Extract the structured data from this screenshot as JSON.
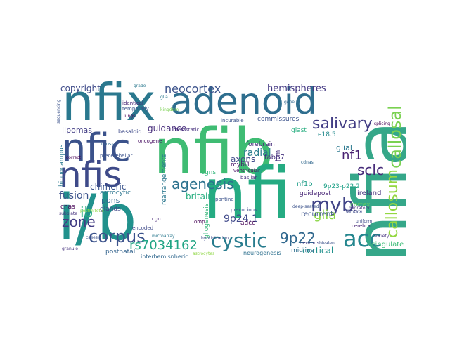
{
  "word_cloud": {
    "words": [
      {
        "text": "nfia",
        "color": "#35a789"
      },
      {
        "text": "nfib",
        "color": "#3fbc73"
      },
      {
        "text": "nfix",
        "color": "#2a788e"
      },
      {
        "text": "i/b",
        "color": "#21918c"
      },
      {
        "text": "nfi",
        "color": "#25ab82"
      },
      {
        "text": "adenoid",
        "color": "#2e6e8e"
      },
      {
        "text": "nfic",
        "color": "#3b528b"
      },
      {
        "text": "nfis",
        "color": "#3e4a89"
      },
      {
        "text": "callosum",
        "color": "#93d741"
      },
      {
        "text": "callosal",
        "color": "#7ad151"
      },
      {
        "text": "acc",
        "color": "#24868e"
      },
      {
        "text": "myb",
        "color": "#414487"
      },
      {
        "text": "cystic",
        "color": "#287c8e"
      },
      {
        "text": "9p22",
        "color": "#31688e"
      },
      {
        "text": "corpus",
        "color": "#3b528b"
      },
      {
        "text": "rs7034162",
        "color": "#21a585"
      },
      {
        "text": "salivary",
        "color": "#433e85"
      },
      {
        "text": "agenesis",
        "color": "#2c728e"
      },
      {
        "text": "zone",
        "color": "#433d84"
      },
      {
        "text": "ib",
        "color": "#29af7f"
      },
      {
        "text": "glia",
        "color": "#8bd646"
      },
      {
        "text": "sclc",
        "color": "#472c7a"
      },
      {
        "text": "neocortex",
        "color": "#3b528b"
      },
      {
        "text": "hemispheres",
        "color": "#443983"
      },
      {
        "text": "copyright",
        "color": "#3e4a89"
      },
      {
        "text": "9p24.1",
        "color": "#3f4889"
      },
      {
        "text": "fusion",
        "color": "#3b528b"
      },
      {
        "text": "nf1",
        "color": "#481f70"
      },
      {
        "text": "cortical",
        "color": "#21918c"
      },
      {
        "text": "glial",
        "color": "#2a788e"
      },
      {
        "text": "guidance",
        "color": "#472d7b"
      },
      {
        "text": "radial",
        "color": "#287c8e"
      },
      {
        "text": "axons",
        "color": "#3e4989"
      },
      {
        "text": "britain",
        "color": "#28ae80"
      },
      {
        "text": "pons",
        "color": "#31678e"
      },
      {
        "text": "chimeric",
        "color": "#3a538b"
      },
      {
        "text": "lipomas",
        "color": "#433e85"
      },
      {
        "text": "cingulate",
        "color": "#3aba76"
      },
      {
        "text": "ireland",
        "color": "#46327e"
      },
      {
        "text": "adcc",
        "color": "#440154"
      },
      {
        "text": "mybl1",
        "color": "#481769"
      },
      {
        "text": "forebrain",
        "color": "#472c7a"
      },
      {
        "text": "hippocampus",
        "color": "#2a788e"
      },
      {
        "text": "guidepost",
        "color": "#482576"
      },
      {
        "text": "recurrent",
        "color": "#3b528b"
      },
      {
        "text": "midline",
        "color": "#2e6f8e"
      },
      {
        "text": "neurogenesis",
        "color": "#2d708e"
      },
      {
        "text": "postnatal",
        "color": "#33638d"
      },
      {
        "text": "nf1b",
        "color": "#1f9e89"
      },
      {
        "text": "fabp7",
        "color": "#46327e"
      },
      {
        "text": "rearrangements",
        "color": "#2a778e"
      },
      {
        "text": "gliogenesis",
        "color": "#35b779"
      },
      {
        "text": "astrocytic",
        "color": "#2b748e"
      },
      {
        "text": "interhemispheric",
        "color": "#31688e"
      },
      {
        "text": "glands",
        "color": "#404688"
      },
      {
        "text": "9p23-p22.2",
        "color": "#1fa187"
      },
      {
        "text": "cortex",
        "color": "#5ec962"
      },
      {
        "text": "e18.5",
        "color": "#238a8d"
      },
      {
        "text": "commissures",
        "color": "#3b528b"
      },
      {
        "text": "cnas",
        "color": "#440154"
      },
      {
        "text": "cgns",
        "color": "#32b67a"
      },
      {
        "text": "oncogene",
        "color": "#470e61"
      },
      {
        "text": "basaloid",
        "color": "#3e4a89"
      },
      {
        "text": "identical",
        "color": "#482475"
      },
      {
        "text": "glast",
        "color": "#28ae80"
      },
      {
        "text": "jcm",
        "color": "#46307e"
      },
      {
        "text": "ventricular",
        "color": "#470e61"
      },
      {
        "text": "pontine",
        "color": "#3b528b"
      },
      {
        "text": "basilar",
        "color": "#46337f"
      },
      {
        "text": "precocious",
        "color": "#3e4a89"
      },
      {
        "text": "metastatic",
        "color": "#46307e"
      },
      {
        "text": "cross",
        "color": "#31688e"
      },
      {
        "text": "precerebellar",
        "color": "#3b528b"
      },
      {
        "text": "cerebral",
        "color": "#482475"
      },
      {
        "text": "neurons",
        "color": "#433e85"
      },
      {
        "text": "encoded",
        "color": "#3e4a89"
      },
      {
        "text": "omp",
        "color": "#440154"
      },
      {
        "text": "cgn",
        "color": "#482677"
      },
      {
        "text": "bivalent",
        "color": "#3b528b"
      },
      {
        "text": "uniform",
        "color": "#3e4a89"
      },
      {
        "text": "cdnas",
        "color": "#31688e"
      },
      {
        "text": "society",
        "color": "#46327e"
      },
      {
        "text": "temporally",
        "color": "#3b528b"
      },
      {
        "text": "lungs",
        "color": "#440154"
      },
      {
        "text": "subplate",
        "color": "#46327e"
      },
      {
        "text": "grade",
        "color": "#2a788e"
      },
      {
        "text": "sequencing",
        "color": "#3b528b"
      },
      {
        "text": "hybridization",
        "color": "#3e4a89"
      },
      {
        "text": "microarray",
        "color": "#2a788e"
      },
      {
        "text": "granule",
        "color": "#46327e"
      },
      {
        "text": "correct",
        "color": "#440154"
      },
      {
        "text": "deep-seated",
        "color": "#3b528b"
      },
      {
        "text": "kingdom",
        "color": "#7ad151"
      },
      {
        "text": "astrocytes",
        "color": "#8fd744"
      },
      {
        "text": "incurable",
        "color": "#3b528b"
      },
      {
        "text": "glia",
        "color": "#2a788e"
      },
      {
        "text": "splicing",
        "color": "#440154"
      },
      {
        "text": "gene",
        "color": "#31688e"
      },
      {
        "text": "dentate",
        "color": "#3e4a89"
      },
      {
        "text": "postmitotic",
        "color": "#8fd744"
      },
      {
        "text": "migratory",
        "color": "#46327e"
      },
      {
        "text": "cases",
        "color": "#3b528b"
      }
    ]
  }
}
